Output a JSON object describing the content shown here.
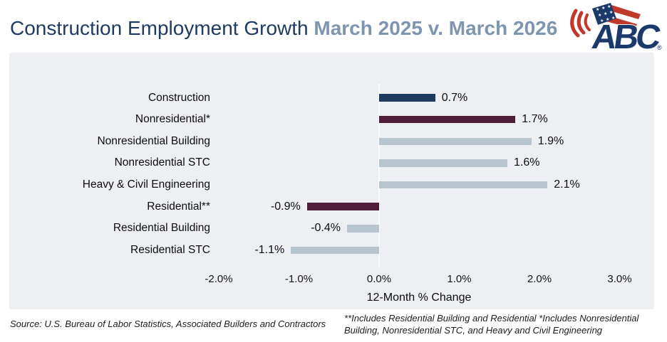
{
  "header": {
    "title_main": "Construction Employment Growth ",
    "title_accent": "March 2025 v. March 2026",
    "logo_text": "ABC",
    "logo_registered": "®"
  },
  "chart_data": {
    "type": "bar",
    "orientation": "horizontal",
    "title": "Construction Employment Growth March 2025 v. March 2026",
    "categories": [
      "Construction",
      "Nonresidential*",
      "Nonresidential Building",
      "Nonresidential STC",
      "Heavy & Civil Engineering",
      "Residential**",
      "Residential Building",
      "Residential STC"
    ],
    "values": [
      0.7,
      1.7,
      1.9,
      1.6,
      2.1,
      -0.9,
      -0.4,
      -1.1
    ],
    "value_labels": [
      "0.7%",
      "1.7%",
      "1.9%",
      "1.6%",
      "2.1%",
      "-0.9%",
      "-0.4%",
      "-1.1%"
    ],
    "bar_colors": [
      "#1e3a5f",
      "#4f1d38",
      "#b8c4ce",
      "#b8c4ce",
      "#b8c4ce",
      "#4f1d38",
      "#b8c4ce",
      "#b8c4ce"
    ],
    "x_tick_labels": [
      "-2.0%",
      "-1.0%",
      "0.0%",
      "1.0%",
      "2.0%",
      "3.0%"
    ],
    "xlim": [
      -2.5,
      3.5
    ],
    "xlabel": "12-Month % Change",
    "grid": false,
    "legend": "none"
  },
  "footnotes": {
    "source": "Source: U.S. Bureau of Labor Statistics, Associated Builders and Contractors",
    "definitions": "**Includes Residential Building and Residential *Includes Nonresidential Building, Nonresidential STC, and Heavy and Civil Engineering"
  },
  "colors": {
    "title_navy": "#1f3b63",
    "title_accent": "#7d95b0",
    "panel_background": "#edeff2",
    "bar_navy": "#1e3a5f",
    "bar_maroon": "#4f1d38",
    "bar_light": "#b8c4ce",
    "logo_navy": "#1b3a6b",
    "logo_red": "#c0392b"
  }
}
